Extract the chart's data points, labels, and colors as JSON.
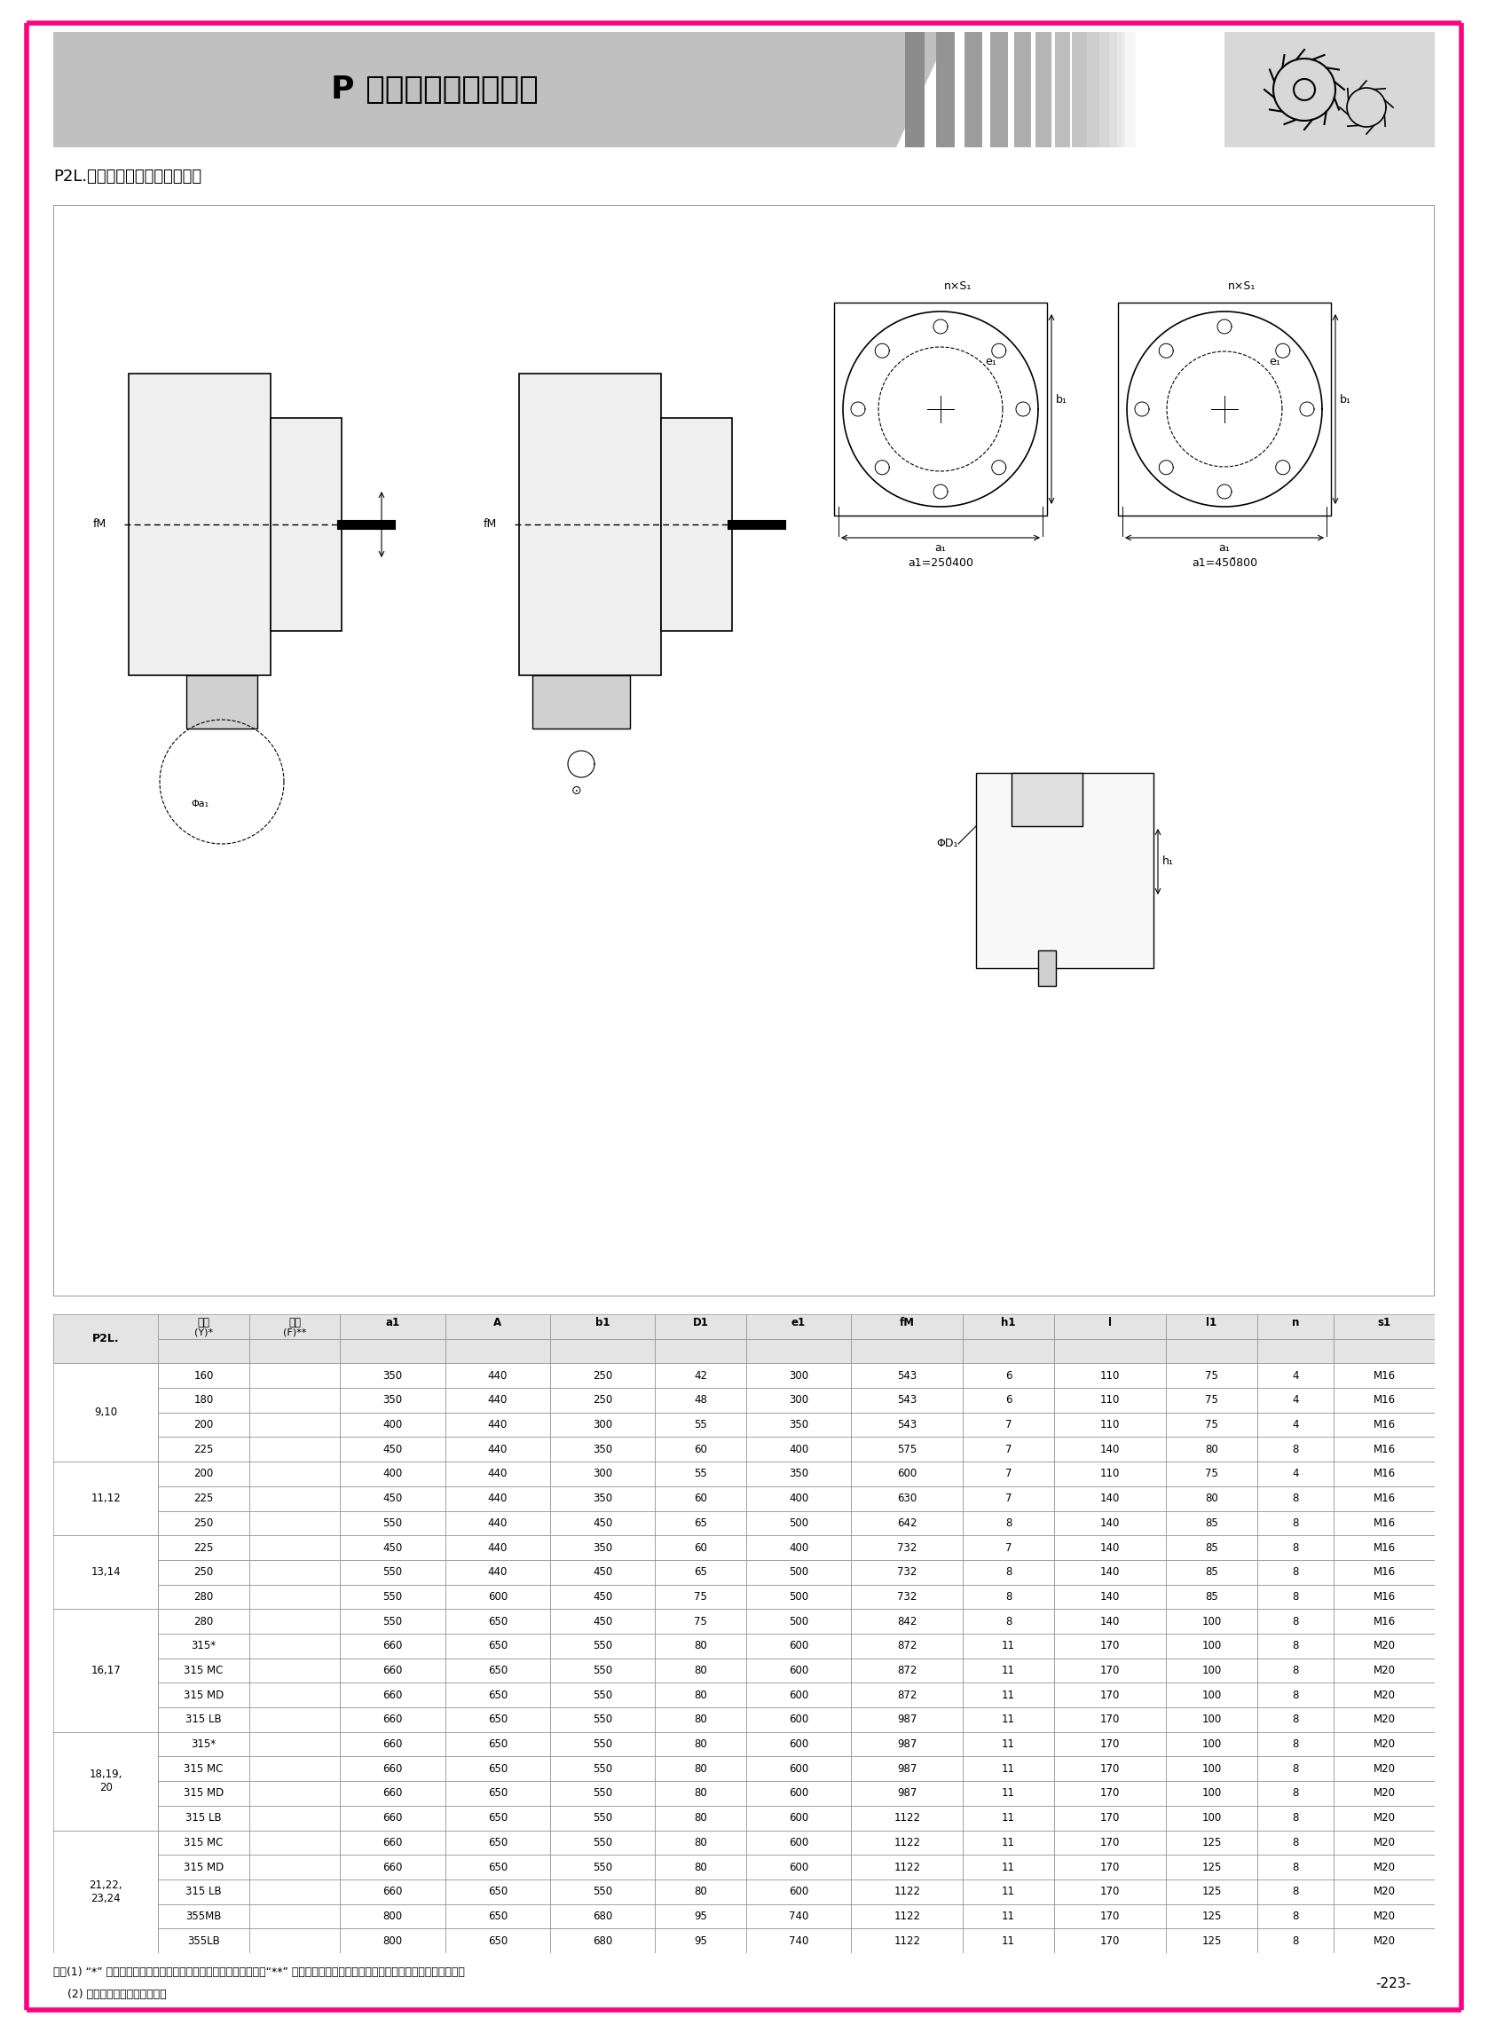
{
  "title": "P 系列行星齒輪減速器",
  "subtitle": "P2L.帶电机法兰及联轴器尺寸：",
  "page_number": "-223-",
  "border_color": "#FF007F",
  "note_line1": "注：(1) “*” 所选直联电机机座号所对应的功率应满足传动能力表；“**” 表格中所示的法兰为标准型号的法兰，如有异同请另咋询。",
  "note_line2": "    (2) 侧面扭力臂组合，请咋询。",
  "header_row1": [
    "P2L.",
    "电机",
    "法兰",
    "a1",
    "A",
    "b1",
    "D1",
    "e1",
    "fM",
    "h1",
    "l",
    "l1",
    "n",
    "s1"
  ],
  "header_row2": [
    "",
    "(Y)*",
    "(F)**",
    "",
    "",
    "",
    "",
    "",
    "",
    "",
    "",
    "",
    "",
    ""
  ],
  "table_data": [
    [
      "9,10",
      "160",
      "",
      "350",
      "440",
      "250",
      "42",
      "300",
      "543",
      "6",
      "110",
      "75",
      "4",
      "M16"
    ],
    [
      "9,10",
      "180",
      "",
      "350",
      "440",
      "250",
      "48",
      "300",
      "543",
      "6",
      "110",
      "75",
      "4",
      "M16"
    ],
    [
      "9,10",
      "200",
      "",
      "400",
      "440",
      "300",
      "55",
      "350",
      "543",
      "7",
      "110",
      "75",
      "4",
      "M16"
    ],
    [
      "9,10",
      "225",
      "",
      "450",
      "440",
      "350",
      "60",
      "400",
      "575",
      "7",
      "140",
      "80",
      "8",
      "M16"
    ],
    [
      "11,12",
      "200",
      "",
      "400",
      "440",
      "300",
      "55",
      "350",
      "600",
      "7",
      "110",
      "75",
      "4",
      "M16"
    ],
    [
      "11,12",
      "225",
      "",
      "450",
      "440",
      "350",
      "60",
      "400",
      "630",
      "7",
      "140",
      "80",
      "8",
      "M16"
    ],
    [
      "11,12",
      "250",
      "",
      "550",
      "440",
      "450",
      "65",
      "500",
      "642",
      "8",
      "140",
      "85",
      "8",
      "M16"
    ],
    [
      "13,14",
      "225",
      "",
      "450",
      "440",
      "350",
      "60",
      "400",
      "732",
      "7",
      "140",
      "85",
      "8",
      "M16"
    ],
    [
      "13,14",
      "250",
      "",
      "550",
      "440",
      "450",
      "65",
      "500",
      "732",
      "8",
      "140",
      "85",
      "8",
      "M16"
    ],
    [
      "13,14",
      "280",
      "",
      "550",
      "600",
      "450",
      "75",
      "500",
      "732",
      "8",
      "140",
      "85",
      "8",
      "M16"
    ],
    [
      "16,17",
      "280",
      "",
      "550",
      "650",
      "450",
      "75",
      "500",
      "842",
      "8",
      "140",
      "100",
      "8",
      "M16"
    ],
    [
      "16,17",
      "315*",
      "",
      "660",
      "650",
      "550",
      "80",
      "600",
      "872",
      "11",
      "170",
      "100",
      "8",
      "M20"
    ],
    [
      "16,17",
      "315 MC",
      "",
      "660",
      "650",
      "550",
      "80",
      "600",
      "872",
      "11",
      "170",
      "100",
      "8",
      "M20"
    ],
    [
      "16,17",
      "315 MD",
      "",
      "660",
      "650",
      "550",
      "80",
      "600",
      "872",
      "11",
      "170",
      "100",
      "8",
      "M20"
    ],
    [
      "16,17",
      "315 LB",
      "",
      "660",
      "650",
      "550",
      "80",
      "600",
      "987",
      "11",
      "170",
      "100",
      "8",
      "M20"
    ],
    [
      "18,19,20",
      "315*",
      "",
      "660",
      "650",
      "550",
      "80",
      "600",
      "987",
      "11",
      "170",
      "100",
      "8",
      "M20"
    ],
    [
      "18,19,20",
      "315 MC",
      "",
      "660",
      "650",
      "550",
      "80",
      "600",
      "987",
      "11",
      "170",
      "100",
      "8",
      "M20"
    ],
    [
      "18,19,20",
      "315 MD",
      "",
      "660",
      "650",
      "550",
      "80",
      "600",
      "987",
      "11",
      "170",
      "100",
      "8",
      "M20"
    ],
    [
      "18,19,20",
      "315 LB",
      "",
      "660",
      "650",
      "550",
      "80",
      "600",
      "1122",
      "11",
      "170",
      "100",
      "8",
      "M20"
    ],
    [
      "21,22,23,24",
      "315 MC",
      "",
      "660",
      "650",
      "550",
      "80",
      "600",
      "1122",
      "11",
      "170",
      "125",
      "8",
      "M20"
    ],
    [
      "21,22,23,24",
      "315 MD",
      "",
      "660",
      "650",
      "550",
      "80",
      "600",
      "1122",
      "11",
      "170",
      "125",
      "8",
      "M20"
    ],
    [
      "21,22,23,24",
      "315 LB",
      "",
      "660",
      "650",
      "550",
      "80",
      "600",
      "1122",
      "11",
      "170",
      "125",
      "8",
      "M20"
    ],
    [
      "21,22,23,24",
      "355MB",
      "",
      "800",
      "650",
      "680",
      "95",
      "740",
      "1122",
      "11",
      "170",
      "125",
      "8",
      "M20"
    ],
    [
      "21,22,23,24",
      "355LB",
      "",
      "800",
      "650",
      "680",
      "95",
      "740",
      "1122",
      "11",
      "170",
      "125",
      "8",
      "M20"
    ]
  ],
  "group_spans": [
    {
      "label": "9,10",
      "rows": [
        0,
        1,
        2,
        3
      ]
    },
    {
      "label": "11,12",
      "rows": [
        4,
        5,
        6
      ]
    },
    {
      "label": "13,14",
      "rows": [
        7,
        8,
        9
      ]
    },
    {
      "label": "16,17",
      "rows": [
        10,
        11,
        12,
        13,
        14
      ]
    },
    {
      "label": "18,19,\n20",
      "rows": [
        15,
        16,
        17,
        18
      ]
    },
    {
      "label": "21,22,\n23,24",
      "rows": [
        19,
        20,
        21,
        22,
        23
      ]
    }
  ]
}
